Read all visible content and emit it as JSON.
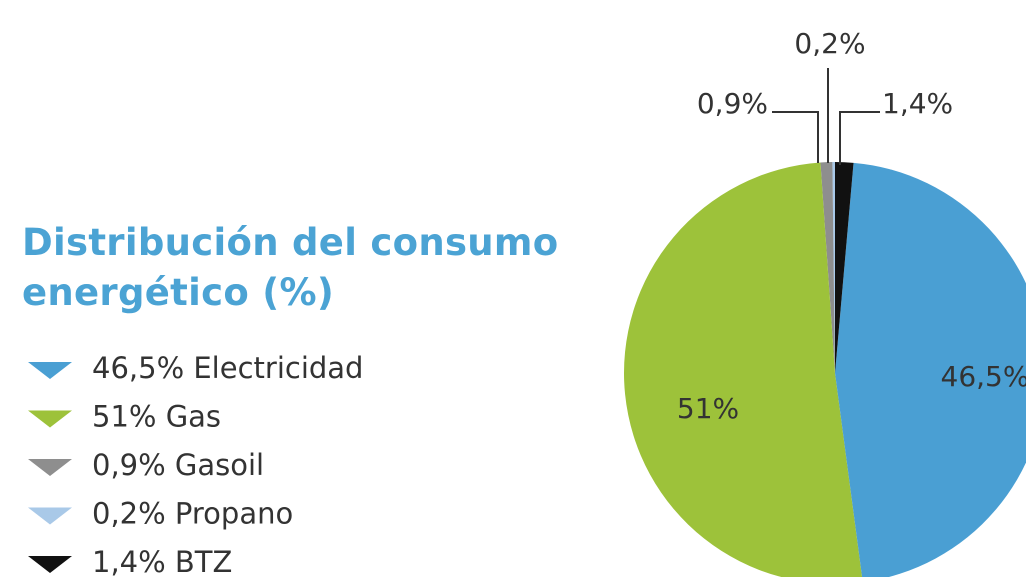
{
  "chart_data": {
    "type": "pie",
    "title": "Distribución del consumo energético (%)",
    "categories": [
      "BTZ",
      "Electricidad",
      "Gas",
      "Gasoil",
      "Propano"
    ],
    "values": [
      1.4,
      46.5,
      51,
      0.9,
      0.2
    ],
    "value_labels": [
      "1,4%",
      "46,5%",
      "51%",
      "0,9%",
      "0,2%"
    ],
    "colors": [
      "#111111",
      "#4a9fd3",
      "#9dc23a",
      "#8e8e8e",
      "#a9c9e8"
    ],
    "legend_order": [
      1,
      2,
      3,
      4,
      0
    ]
  }
}
